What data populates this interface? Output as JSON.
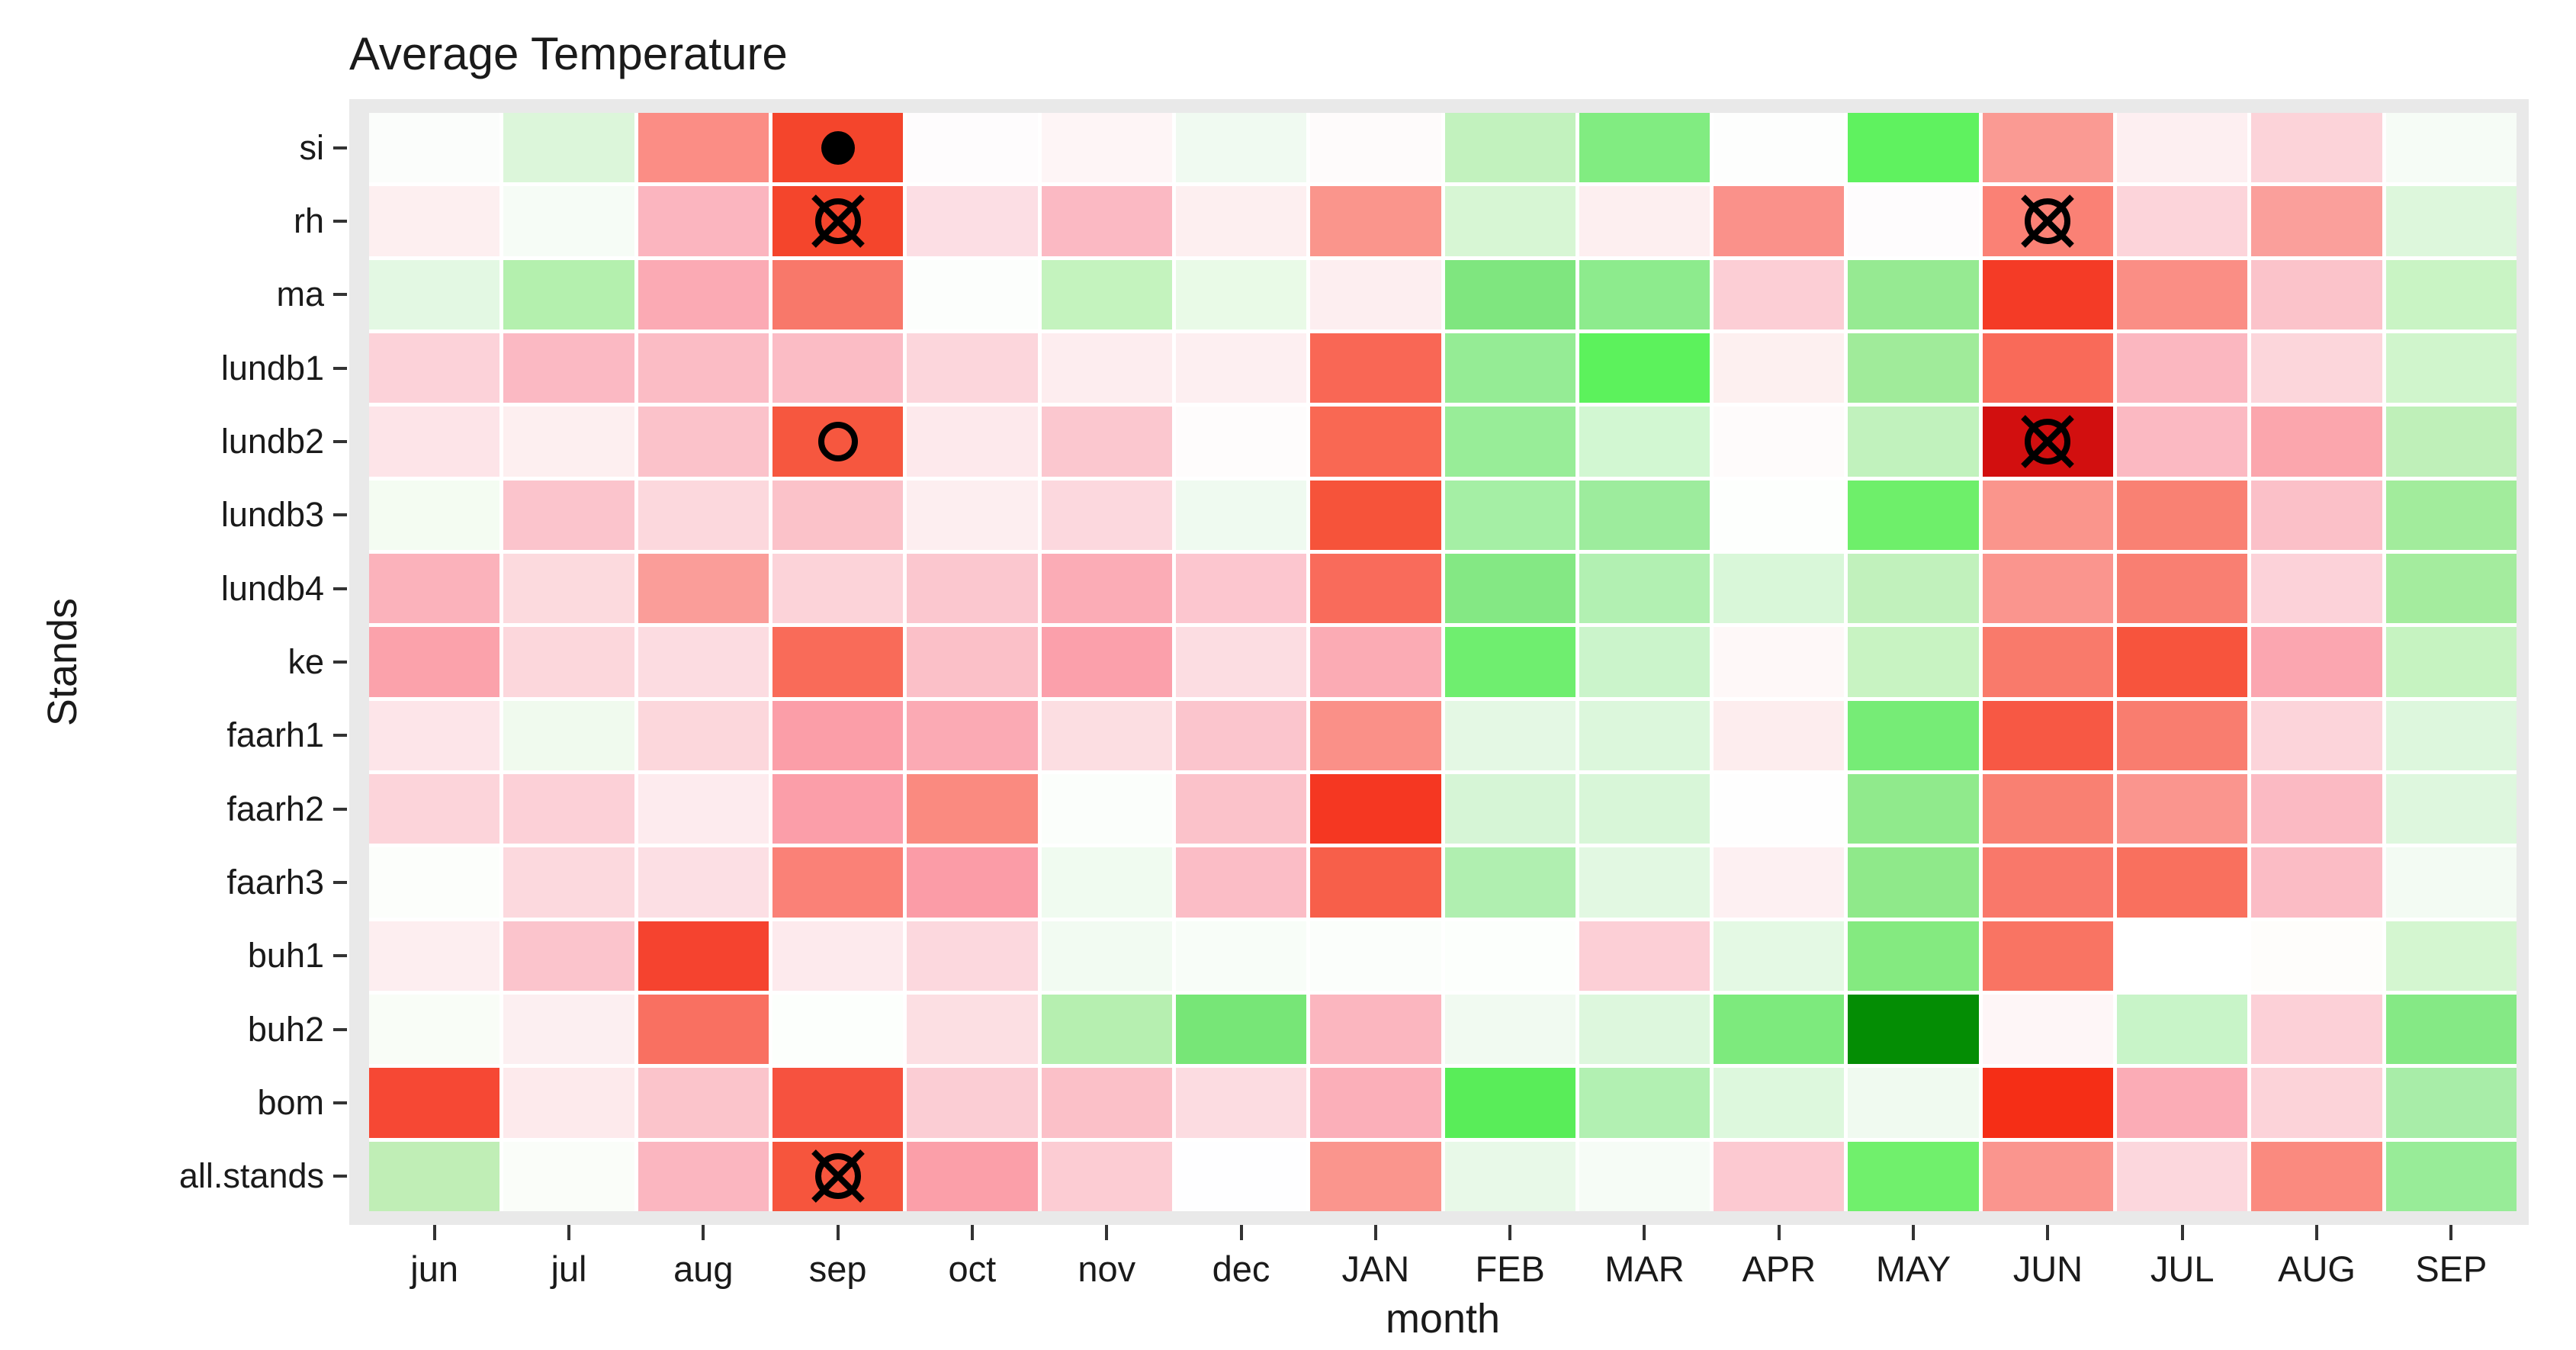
{
  "title": "Average Temperature",
  "x_axis": {
    "label": "month"
  },
  "y_axis": {
    "label": "Stands"
  },
  "chart_data": {
    "type": "heatmap",
    "title": "Average Temperature",
    "xlabel": "month",
    "ylabel": "Stands",
    "legend": "none",
    "panel_background": "#e9e9e9",
    "grid_gap_color": "#ffffff",
    "tick_color": "#333333",
    "color_scale": "green (low) to white to red (high)",
    "columns": [
      "jun",
      "jul",
      "aug",
      "sep",
      "oct",
      "nov",
      "dec",
      "JAN",
      "FEB",
      "MAR",
      "APR",
      "MAY",
      "JUN",
      "JUL",
      "AUG",
      "SEP"
    ],
    "rows": [
      "si",
      "rh",
      "ma",
      "lundb1",
      "lundb2",
      "lundb3",
      "lundb4",
      "ke",
      "faarh1",
      "faarh2",
      "faarh3",
      "buh1",
      "buh2",
      "bom",
      "all.stands"
    ],
    "cell_colors": [
      [
        "#fbfdfb",
        "#dcf6da",
        "#fb8d85",
        "#f4452c",
        "#fefcfd",
        "#fef5f6",
        "#f0faf1",
        "#fefbfb",
        "#c2f2be",
        "#81ec81",
        "#fdfefd",
        "#5ff25f",
        "#fa9a93",
        "#fdeff1",
        "#fcd3d9",
        "#f6fcf6"
      ],
      [
        "#fdeff0",
        "#f6fcf6",
        "#fbb5bf",
        "#f4452c",
        "#fcdee4",
        "#fbb9c3",
        "#fdeff0",
        "#fa958c",
        "#d7f6d4",
        "#fdeff0",
        "#fa918a",
        "#fefcfd",
        "#fa8175",
        "#fcd4da",
        "#fa9f9b",
        "#ddf7dc"
      ],
      [
        "#e3f8e3",
        "#b4f0ae",
        "#fbaab4",
        "#f8786a",
        "#fcfefc",
        "#c4f3be",
        "#e9fae7",
        "#fdeef0",
        "#7fe67f",
        "#8deb8d",
        "#fcced5",
        "#96ea92",
        "#f43b26",
        "#fa8e85",
        "#fbc3ca",
        "#c9f4c4"
      ],
      [
        "#fcd2d9",
        "#fbb9c3",
        "#fbbcc5",
        "#fbbcc5",
        "#fcd6dc",
        "#fdedef",
        "#fdeff1",
        "#f96755",
        "#95ec95",
        "#5cf25c",
        "#fdf0f0",
        "#a0eb9a",
        "#f96a59",
        "#fbb7c0",
        "#fcd6db",
        "#d0f5cc"
      ],
      [
        "#fde4e8",
        "#fdeff0",
        "#fbc2ca",
        "#f6573f",
        "#fde9ec",
        "#fbc7cf",
        "#fefcfc",
        "#f96853",
        "#98ed98",
        "#d2f7d2",
        "#fefbfb",
        "#c1f2bd",
        "#d20f0f",
        "#fbb9c2",
        "#fba6ad",
        "#bff0b9"
      ],
      [
        "#f4fcf2",
        "#fbc4cc",
        "#fcd8dd",
        "#fbc2c9",
        "#fdeef0",
        "#fcd8de",
        "#effaf0",
        "#f6533a",
        "#a5efa5",
        "#9dec9d",
        "#fdfffd",
        "#6eef6a",
        "#fa958c",
        "#f98173",
        "#fbc0c8",
        "#a2ec9c"
      ],
      [
        "#fbb2bb",
        "#fcdade",
        "#fa9d99",
        "#fcd3d9",
        "#fbc7cf",
        "#fbacb6",
        "#fcc6cf",
        "#f96b5b",
        "#84e884",
        "#b2f0b2",
        "#d9f7d9",
        "#c1f1bc",
        "#fa958e",
        "#f97f72",
        "#fcd2d9",
        "#a4ec9e"
      ],
      [
        "#fba2ab",
        "#fcd7dc",
        "#fcdce1",
        "#f96b59",
        "#fbc0c8",
        "#fba0ab",
        "#fcdde2",
        "#fbabb4",
        "#6fee6f",
        "#cbf4cb",
        "#fef8f8",
        "#c8f3c2",
        "#f97a6b",
        "#f7543d",
        "#fba6b0",
        "#c6f3c1"
      ],
      [
        "#fde5e9",
        "#f0faee",
        "#fcd7dc",
        "#fb9ea8",
        "#fbaab4",
        "#fcdee2",
        "#fbc5cd",
        "#fa9088",
        "#e4f8e4",
        "#dcf7dc",
        "#fdedee",
        "#76ec76",
        "#f75844",
        "#f97d6f",
        "#fcd4da",
        "#ddf7dd"
      ],
      [
        "#fcd4da",
        "#fcd0d7",
        "#fdebee",
        "#fb9ea9",
        "#fa8a80",
        "#fbfefb",
        "#fbc2ca",
        "#f53722",
        "#d6f5d6",
        "#d8f6d8",
        "#fefefe",
        "#90ea8c",
        "#f98072",
        "#fa958e",
        "#fbbac3",
        "#def7de"
      ],
      [
        "#fcfefb",
        "#fcd9de",
        "#fcdfe4",
        "#fa8177",
        "#fb9ca7",
        "#f0fbf0",
        "#fbbdc6",
        "#f75f4a",
        "#b0efb0",
        "#e2f8e2",
        "#fdf0f2",
        "#8fe98a",
        "#f9786a",
        "#f9705e",
        "#fbbcc5",
        "#f3fbf3"
      ],
      [
        "#fdeef0",
        "#fbc4cc",
        "#f5432f",
        "#fdeaed",
        "#fcd8de",
        "#f2fbf2",
        "#f8fdf8",
        "#fbfefb",
        "#fcfffc",
        "#fccfd6",
        "#e4f9e4",
        "#84ea80",
        "#f97463",
        "#ffffff",
        "#fefdfb",
        "#d4f6d0"
      ],
      [
        "#f9fdf7",
        "#fceff1",
        "#f97061",
        "#fcfffc",
        "#fcdfe3",
        "#b6efb0",
        "#77e677",
        "#fbb6bf",
        "#f1faf1",
        "#ddf7dd",
        "#7dea7d",
        "#048d04",
        "#fef6f7",
        "#c8f4c8",
        "#fcd0d7",
        "#85e985"
      ],
      [
        "#f64834",
        "#fdeaec",
        "#fbc4cb",
        "#f6523f",
        "#fbcdd4",
        "#fbc0c8",
        "#fcdce1",
        "#fbafb9",
        "#59ed59",
        "#b2f0b2",
        "#ddf8dd",
        "#f0faf0",
        "#f52e16",
        "#fbacb6",
        "#fcd3d9",
        "#a8eda8"
      ],
      [
        "#c0eeb6",
        "#fafdf9",
        "#fbb6c0",
        "#f6553d",
        "#fb9fa9",
        "#fcccd3",
        "#fefeff",
        "#fa958d",
        "#e8f9e8",
        "#f6fcf6",
        "#fcc9d1",
        "#70f06c",
        "#fa958e",
        "#fcd7dd",
        "#fa8a7f",
        "#98ec98"
      ]
    ],
    "markers": [
      {
        "row": 0,
        "col": 3,
        "row_name": "si",
        "col_name": "sep",
        "type": "filled-circle"
      },
      {
        "row": 1,
        "col": 3,
        "row_name": "rh",
        "col_name": "sep",
        "type": "circle-x"
      },
      {
        "row": 1,
        "col": 12,
        "row_name": "rh",
        "col_name": "JUN",
        "type": "circle-x"
      },
      {
        "row": 4,
        "col": 3,
        "row_name": "lundb2",
        "col_name": "sep",
        "type": "open-circle"
      },
      {
        "row": 4,
        "col": 12,
        "row_name": "lundb2",
        "col_name": "JUN",
        "type": "circle-x"
      },
      {
        "row": 14,
        "col": 3,
        "row_name": "all.stands",
        "col_name": "sep",
        "type": "circle-x"
      }
    ]
  }
}
